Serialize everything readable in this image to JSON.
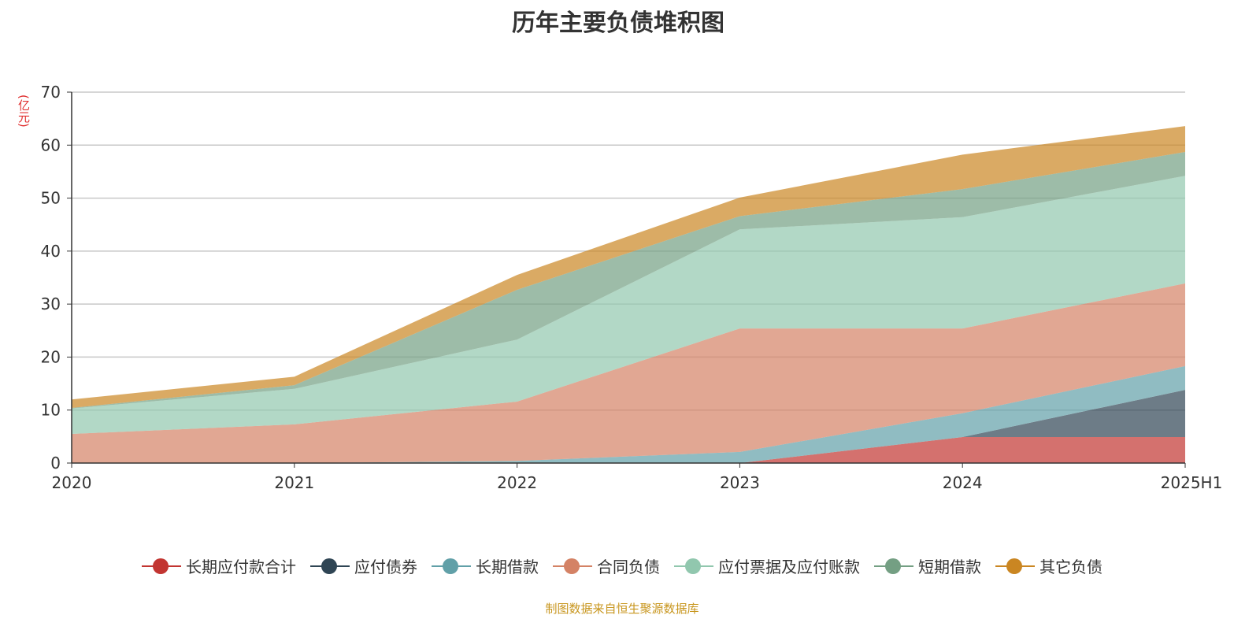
{
  "chart_data": {
    "type": "area",
    "stacked": true,
    "title": "历年主要负债堆积图",
    "ylabel": "(亿元)",
    "xlabel": "",
    "ylim": [
      0,
      70
    ],
    "yticks": [
      0,
      10,
      20,
      30,
      40,
      50,
      60,
      70
    ],
    "categories": [
      "2020",
      "2021",
      "2022",
      "2023",
      "2024",
      "2025H1"
    ],
    "grid": true,
    "legend_position": "bottom",
    "series": [
      {
        "name": "长期应付款合计",
        "color": "#c23531",
        "values": [
          0,
          0,
          0,
          0,
          4.9,
          4.9
        ]
      },
      {
        "name": "应付债券",
        "color": "#2f4554",
        "values": [
          0,
          0,
          0,
          0,
          0,
          8.9
        ]
      },
      {
        "name": "长期借款",
        "color": "#61a0a8",
        "values": [
          0,
          0,
          0.4,
          2.1,
          4.5,
          4.5
        ]
      },
      {
        "name": "合同负债",
        "color": "#d48265",
        "values": [
          5.5,
          7.3,
          11.2,
          23.3,
          16.0,
          15.6
        ]
      },
      {
        "name": "应付票据及应付账款",
        "color": "#91c7ae",
        "values": [
          4.8,
          6.7,
          11.7,
          18.7,
          21.0,
          20.3
        ]
      },
      {
        "name": "短期借款",
        "color": "#749f83",
        "values": [
          0.1,
          0.7,
          9.4,
          2.5,
          5.3,
          4.5
        ]
      },
      {
        "name": "其它负债",
        "color": "#ca8622",
        "values": [
          1.6,
          1.6,
          2.8,
          3.5,
          6.5,
          4.9
        ]
      }
    ]
  },
  "source": "制图数据来自恒生聚源数据库"
}
